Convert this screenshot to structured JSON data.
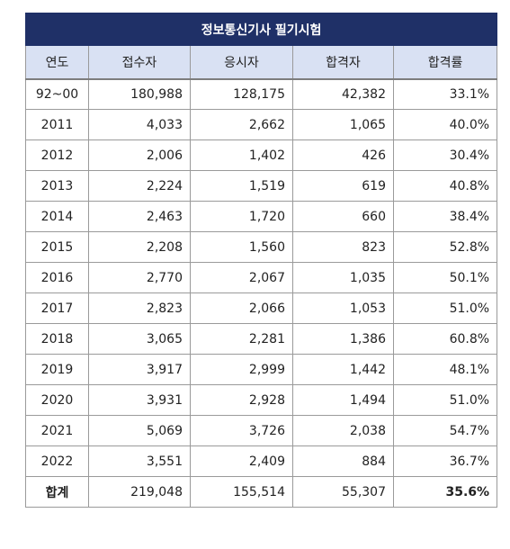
{
  "title": "정보통신기사 필기시험",
  "headers": [
    "연도",
    "접수자",
    "응시자",
    "합격자",
    "합격률"
  ],
  "rows": [
    {
      "year": "92~00",
      "applicants": "180,988",
      "takers": "128,175",
      "passers": "42,382",
      "rate": "33.1%"
    },
    {
      "year": "2011",
      "applicants": "4,033",
      "takers": "2,662",
      "passers": "1,065",
      "rate": "40.0%"
    },
    {
      "year": "2012",
      "applicants": "2,006",
      "takers": "1,402",
      "passers": "426",
      "rate": "30.4%"
    },
    {
      "year": "2013",
      "applicants": "2,224",
      "takers": "1,519",
      "passers": "619",
      "rate": "40.8%"
    },
    {
      "year": "2014",
      "applicants": "2,463",
      "takers": "1,720",
      "passers": "660",
      "rate": "38.4%"
    },
    {
      "year": "2015",
      "applicants": "2,208",
      "takers": "1,560",
      "passers": "823",
      "rate": "52.8%"
    },
    {
      "year": "2016",
      "applicants": "2,770",
      "takers": "2,067",
      "passers": "1,035",
      "rate": "50.1%"
    },
    {
      "year": "2017",
      "applicants": "2,823",
      "takers": "2,066",
      "passers": "1,053",
      "rate": "51.0%"
    },
    {
      "year": "2018",
      "applicants": "3,065",
      "takers": "2,281",
      "passers": "1,386",
      "rate": "60.8%"
    },
    {
      "year": "2019",
      "applicants": "3,917",
      "takers": "2,999",
      "passers": "1,442",
      "rate": "48.1%"
    },
    {
      "year": "2020",
      "applicants": "3,931",
      "takers": "2,928",
      "passers": "1,494",
      "rate": "51.0%"
    },
    {
      "year": "2021",
      "applicants": "5,069",
      "takers": "3,726",
      "passers": "2,038",
      "rate": "54.7%"
    },
    {
      "year": "2022",
      "applicants": "3,551",
      "takers": "2,409",
      "passers": "884",
      "rate": "36.7%"
    }
  ],
  "total": {
    "year": "합계",
    "applicants": "219,048",
    "takers": "155,514",
    "passers": "55,307",
    "rate": "35.6%"
  },
  "colors": {
    "title_bg": "#1f3067",
    "header_bg": "#d9e1f3"
  }
}
